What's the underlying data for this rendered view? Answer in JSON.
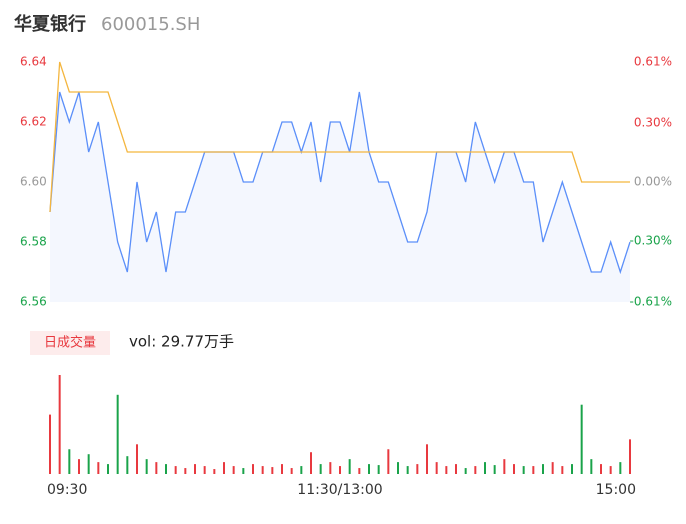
{
  "chart_data": {
    "type": "intraday",
    "title": "华夏银行",
    "subtitle": "600015.SH",
    "categories": [
      "09:30",
      null,
      null,
      null,
      null,
      null,
      null,
      null,
      null,
      null,
      null,
      null,
      null,
      null,
      null,
      null,
      null,
      null,
      null,
      null,
      null,
      null,
      null,
      null,
      null,
      null,
      null,
      null,
      null,
      null,
      "11:30/13:00",
      null,
      null,
      null,
      null,
      null,
      null,
      null,
      null,
      null,
      null,
      null,
      null,
      null,
      null,
      null,
      null,
      null,
      null,
      null,
      null,
      null,
      null,
      null,
      null,
      null,
      null,
      null,
      null,
      null,
      "15:00"
    ],
    "series": [
      {
        "name": "price",
        "color": "#5b8ff9",
        "values": [
          6.59,
          6.63,
          6.62,
          6.63,
          6.61,
          6.62,
          6.6,
          6.58,
          6.57,
          6.6,
          6.58,
          6.59,
          6.57,
          6.59,
          6.59,
          6.6,
          6.61,
          6.61,
          6.61,
          6.61,
          6.6,
          6.6,
          6.61,
          6.61,
          6.62,
          6.62,
          6.61,
          6.62,
          6.6,
          6.62,
          6.62,
          6.61,
          6.63,
          6.61,
          6.6,
          6.6,
          6.59,
          6.58,
          6.58,
          6.59,
          6.61,
          6.61,
          6.61,
          6.6,
          6.62,
          6.61,
          6.6,
          6.61,
          6.61,
          6.6,
          6.6,
          6.58,
          6.59,
          6.6,
          6.59,
          6.58,
          6.57,
          6.57,
          6.58,
          6.57,
          6.58
        ]
      },
      {
        "name": "average",
        "color": "#f4b63f",
        "values": [
          6.59,
          6.64,
          6.63,
          6.63,
          6.63,
          6.63,
          6.63,
          6.62,
          6.61,
          6.61,
          6.61,
          6.61,
          6.61,
          6.61,
          6.61,
          6.61,
          6.61,
          6.61,
          6.61,
          6.61,
          6.61,
          6.61,
          6.61,
          6.61,
          6.61,
          6.61,
          6.61,
          6.61,
          6.61,
          6.61,
          6.61,
          6.61,
          6.61,
          6.61,
          6.61,
          6.61,
          6.61,
          6.61,
          6.61,
          6.61,
          6.61,
          6.61,
          6.61,
          6.61,
          6.61,
          6.61,
          6.61,
          6.61,
          6.61,
          6.61,
          6.61,
          6.61,
          6.61,
          6.61,
          6.61,
          6.6,
          6.6,
          6.6,
          6.6,
          6.6,
          6.6
        ]
      }
    ],
    "ylim": [
      6.56,
      6.64
    ],
    "yticks": [
      6.64,
      6.62,
      {
        "value": 6.6,
        "label": "6.60"
      },
      6.58,
      6.56
    ],
    "y2lim": [
      -0.61,
      0.61
    ],
    "y2ticks": [
      {
        "value": 0.61,
        "label": "0.61%"
      },
      {
        "value": 0.3,
        "label": "0.30%"
      },
      {
        "value": 0,
        "label": "0.00%"
      },
      {
        "value": -0.3,
        "label": "-0.30%"
      },
      {
        "value": -0.61,
        "label": "-0.61%"
      }
    ],
    "up_color": "#e8393f",
    "down_color": "#1aa34a",
    "flat_color": "#999999",
    "volume_tab": "日成交量",
    "volume_text": "vol: 29.77万手",
    "volume": {
      "values": [
        60,
        100,
        25,
        15,
        20,
        12,
        10,
        80,
        18,
        30,
        15,
        12,
        10,
        8,
        6,
        10,
        8,
        5,
        12,
        8,
        6,
        10,
        8,
        7,
        10,
        6,
        8,
        22,
        10,
        12,
        8,
        15,
        6,
        10,
        9,
        25,
        12,
        8,
        10,
        30,
        12,
        8,
        10,
        6,
        8,
        12,
        9,
        15,
        10,
        8,
        8,
        10,
        12,
        8,
        10,
        70,
        15,
        10,
        8,
        12,
        35
      ]
    }
  }
}
